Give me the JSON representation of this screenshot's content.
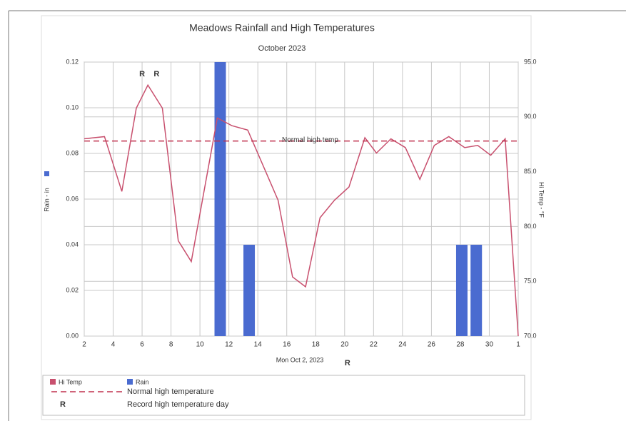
{
  "chart_data": {
    "type": "combo",
    "title": "Meadows Rainfall and High Temperatures",
    "subtitle": "October 2023",
    "xlabel": "Mon Oct 2, 2023",
    "ylabel": "Rain - in",
    "y2label": "Hi Temp - °F",
    "xlim": [
      2,
      32
    ],
    "xticks": [
      2,
      4,
      6,
      8,
      10,
      12,
      14,
      16,
      18,
      20,
      22,
      24,
      26,
      28,
      30,
      {
        "value": 32,
        "label": "1"
      }
    ],
    "ylim": [
      0,
      0.12
    ],
    "yticks": [
      {
        "value": 0,
        "label": "0.00"
      },
      {
        "value": 0.02,
        "label": "0.02"
      },
      {
        "value": 0.04,
        "label": "0.04"
      },
      {
        "value": 0.06,
        "label": "0.06"
      },
      {
        "value": 0.08,
        "label": "0.08"
      },
      {
        "value": 0.1,
        "label": "0.10"
      },
      {
        "value": 0.12,
        "label": "0.12"
      }
    ],
    "y2lim": [
      70,
      95
    ],
    "y2ticks": [
      {
        "value": 70,
        "label": "70.0"
      },
      {
        "value": 75,
        "label": "75.0"
      },
      {
        "value": 80,
        "label": "80.0"
      },
      {
        "value": 85,
        "label": "85.0"
      },
      {
        "value": 90,
        "label": "90.0"
      },
      {
        "value": 95,
        "label": "95.0"
      }
    ],
    "grid": true,
    "series": [
      {
        "name": "Hi Temp",
        "type": "line",
        "axis": "y2",
        "color": "#c8506e",
        "x": [
          2,
          3.4,
          4.6,
          5.6,
          6.4,
          7.4,
          8.5,
          9.4,
          11.2,
          12.2,
          13.3,
          15.4,
          16.4,
          17.3,
          18.3,
          19.3,
          20.3,
          21.4,
          22.2,
          23.2,
          24.2,
          25.2,
          26.2,
          27.2,
          28.3,
          29.2,
          30.1,
          31.1,
          32
        ],
        "values": [
          88.0,
          88.2,
          83.2,
          90.8,
          92.9,
          90.8,
          78.7,
          76.8,
          89.9,
          89.2,
          88.8,
          82.4,
          75.4,
          74.5,
          80.8,
          82.4,
          83.6,
          88.1,
          86.7,
          88.0,
          87.2,
          84.3,
          87.4,
          88.2,
          87.2,
          87.4,
          86.5,
          88.0,
          70.0
        ]
      },
      {
        "name": "Rain",
        "type": "bar",
        "axis": "y",
        "color": "#4a6bd0",
        "x": [
          11.4,
          13.4,
          28.1,
          29.1
        ],
        "values": [
          0.12,
          0.04,
          0.04,
          0.04
        ]
      }
    ],
    "reference_line": {
      "label": "Normal high temp",
      "legend": "Normal high temperature",
      "value": 87.8,
      "axis": "y2",
      "color": "#c0304e"
    },
    "annotations": [
      {
        "text": "R",
        "x": 6,
        "y": 93.9
      },
      {
        "text": "R",
        "x": 7,
        "y": 93.9
      },
      {
        "text": "R",
        "x": 20.2
      }
    ],
    "record_marker": {
      "symbol": "R",
      "label": "Record high temperature day"
    }
  }
}
